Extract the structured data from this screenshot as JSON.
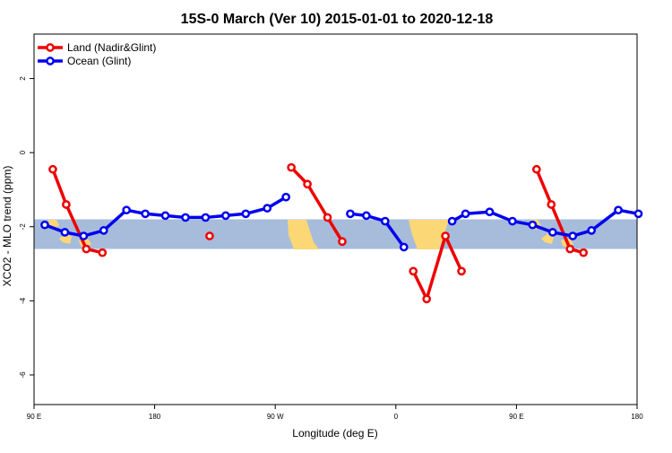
{
  "chart_data": {
    "type": "line",
    "title": "15S-0 March (Ver 10)   2015-01-01 to 2020-12-18",
    "xlabel": "Longitude (deg E)",
    "ylabel": "XCO2 - MLO trend (ppm)",
    "xlim": [
      90,
      540
    ],
    "ylim": [
      -6.8,
      3.2
    ],
    "x_ticks": [
      {
        "value": 90,
        "label": "90 E"
      },
      {
        "value": 180,
        "label": "180"
      },
      {
        "value": 270,
        "label": "90 W"
      },
      {
        "value": 360,
        "label": "0"
      },
      {
        "value": 450,
        "label": "90 E"
      },
      {
        "value": 540,
        "label": "180"
      }
    ],
    "y_ticks": [
      {
        "value": 2,
        "label": "2"
      },
      {
        "value": 0,
        "label": "0"
      },
      {
        "value": -2,
        "label": "-2"
      },
      {
        "value": -4,
        "label": "-4"
      },
      {
        "value": -6,
        "label": "-6"
      }
    ],
    "grid": false,
    "legend_position": "top-left",
    "background_band": {
      "y_range": [
        -2.6,
        -1.8
      ],
      "ocean_color": "#a7bcdb",
      "land_color": "#fcd776"
    },
    "series": [
      {
        "name": "Land (Nadir&Glint)",
        "color": "#ee0000",
        "segments": [
          [
            [
              104,
              -0.45
            ],
            [
              114,
              -1.4
            ],
            [
              129,
              -2.6
            ],
            [
              141,
              -2.7
            ]
          ],
          [
            [
              221,
              -2.25
            ]
          ],
          [
            [
              282,
              -0.4
            ],
            [
              294,
              -0.85
            ],
            [
              309,
              -1.75
            ],
            [
              320,
              -2.4
            ]
          ],
          [
            [
              373,
              -3.2
            ],
            [
              383,
              -3.95
            ],
            [
              397,
              -2.25
            ],
            [
              409,
              -3.2
            ]
          ],
          [
            [
              465,
              -0.45
            ],
            [
              476,
              -1.4
            ],
            [
              490,
              -2.6
            ],
            [
              500,
              -2.7
            ]
          ]
        ]
      },
      {
        "name": "Ocean (Glint)",
        "color": "#0000ee",
        "segments": [
          [
            [
              98,
              -1.95
            ],
            [
              113,
              -2.15
            ],
            [
              127,
              -2.25
            ],
            [
              142,
              -2.1
            ],
            [
              159,
              -1.55
            ],
            [
              173,
              -1.65
            ],
            [
              188,
              -1.7
            ],
            [
              203,
              -1.75
            ],
            [
              218,
              -1.75
            ],
            [
              233,
              -1.7
            ],
            [
              248,
              -1.65
            ],
            [
              264,
              -1.5
            ],
            [
              278,
              -1.2
            ]
          ],
          [
            [
              326,
              -1.65
            ],
            [
              338,
              -1.7
            ],
            [
              352,
              -1.85
            ],
            [
              366,
              -2.55
            ]
          ],
          [
            [
              402,
              -1.85
            ],
            [
              412,
              -1.65
            ],
            [
              430,
              -1.6
            ],
            [
              447,
              -1.85
            ],
            [
              462,
              -1.95
            ],
            [
              477,
              -2.15
            ],
            [
              492,
              -2.25
            ],
            [
              506,
              -2.1
            ],
            [
              526,
              -1.55
            ],
            [
              541,
              -1.65
            ]
          ]
        ]
      }
    ]
  }
}
